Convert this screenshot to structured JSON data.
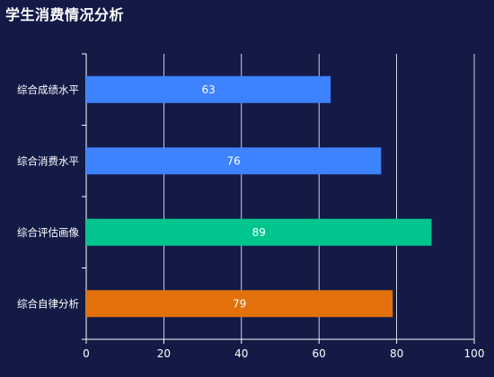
{
  "chart_data": {
    "type": "bar",
    "orientation": "horizontal",
    "title": "学生消费情况分析",
    "xlabel": "",
    "ylabel": "",
    "categories": [
      "综合成绩水平",
      "综合消费水平",
      "综合评估画像",
      "综合自律分析"
    ],
    "values": [
      63,
      76,
      89,
      79
    ],
    "bar_colors": [
      "#3d82fe",
      "#3d82fe",
      "#00c58e",
      "#e2710b"
    ],
    "xlim": [
      0,
      100
    ],
    "xticks": [
      0,
      20,
      40,
      60,
      80,
      100
    ],
    "grid": true,
    "legend": "none"
  },
  "colors": {
    "background": "#131a46",
    "axis": "#ffffff",
    "grid": "#ffffff",
    "text": "#ffffff"
  }
}
